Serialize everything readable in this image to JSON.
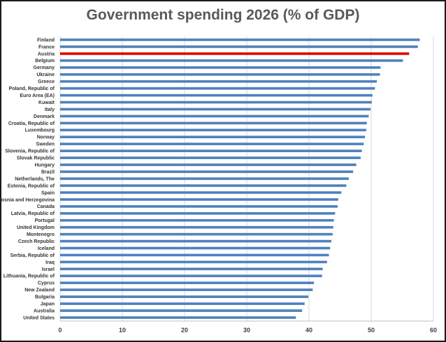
{
  "chart_data": {
    "type": "bar",
    "orientation": "horizontal",
    "title": "Government spending 2026 (% of GDP)",
    "xlabel": "",
    "ylabel": "",
    "xlim": [
      0,
      60
    ],
    "xticks": [
      0,
      10,
      20,
      30,
      40,
      50,
      60
    ],
    "grid": true,
    "legend": "none",
    "colors": {
      "default": "#4f81bd",
      "highlight": "#e00000"
    },
    "highlight": "Austria",
    "categories": [
      "Finland",
      "France",
      "Austria",
      "Belgium",
      "Germany",
      "Ukraine",
      "Greece",
      "Poland, Republic of",
      "Euro Area (EA)",
      "Kuwait",
      "Italy",
      "Denmark",
      "Croatia, Republic of",
      "Luxembourg",
      "Norway",
      "Sweden",
      "Slovenia, Republic of",
      "Slovak Republic",
      "Hungary",
      "Brazil",
      "Netherlands, The",
      "Estonia, Republic of",
      "Spain",
      "Bosnia and Herzegovina",
      "Canada",
      "Latvia, Republic of",
      "Portugal",
      "United Kingdom",
      "Montenegro",
      "Czech Republic",
      "Iceland",
      "Serbia, Republic of",
      "Iraq",
      "Israel",
      "Lithuania, Republic of",
      "Cyprus",
      "New Zealand",
      "Bulgaria",
      "Japan",
      "Australia",
      "United States"
    ],
    "values": [
      57.8,
      57.5,
      56.1,
      55.1,
      51.5,
      51.4,
      50.9,
      50.6,
      50.2,
      50.1,
      49.9,
      49.6,
      49.3,
      49.2,
      49.0,
      48.8,
      48.5,
      48.3,
      47.6,
      47.1,
      46.4,
      46.0,
      45.2,
      44.7,
      44.6,
      44.2,
      44.0,
      43.9,
      43.8,
      43.6,
      43.4,
      43.2,
      42.9,
      42.2,
      42.1,
      40.8,
      40.6,
      39.9,
      39.3,
      38.9,
      37.9
    ]
  }
}
